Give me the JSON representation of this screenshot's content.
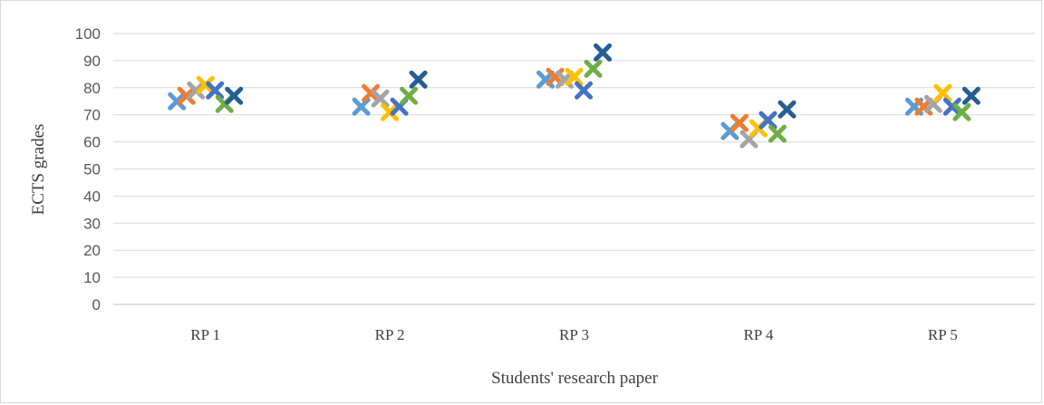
{
  "chart_data": {
    "type": "scatter",
    "xlabel": "Students' research paper",
    "ylabel": "ECTS grades",
    "categories": [
      "RP 1",
      "RP 2",
      "RP 3",
      "RP 4",
      "RP 5"
    ],
    "ylim": [
      0,
      100
    ],
    "yticks": [
      0,
      10,
      20,
      30,
      40,
      50,
      60,
      70,
      80,
      90,
      100
    ],
    "grid": true,
    "legend": "none",
    "marker": "x",
    "series": [
      {
        "color": "#5B9BD5",
        "values": [
          75,
          73,
          83,
          64,
          73
        ]
      },
      {
        "color": "#ED7D31",
        "values": [
          77,
          78,
          84,
          67,
          73
        ]
      },
      {
        "color": "#A5A5A5",
        "values": [
          79,
          76,
          83,
          61,
          74
        ]
      },
      {
        "color": "#FFC000",
        "values": [
          81,
          71,
          84,
          65,
          78
        ]
      },
      {
        "color": "#4472C4",
        "values": [
          79,
          73,
          79,
          68,
          73
        ]
      },
      {
        "color": "#70AD47",
        "values": [
          74,
          77,
          87,
          63,
          71
        ]
      },
      {
        "color": "#255E91",
        "values": [
          77,
          83,
          93,
          72,
          77
        ]
      }
    ]
  }
}
